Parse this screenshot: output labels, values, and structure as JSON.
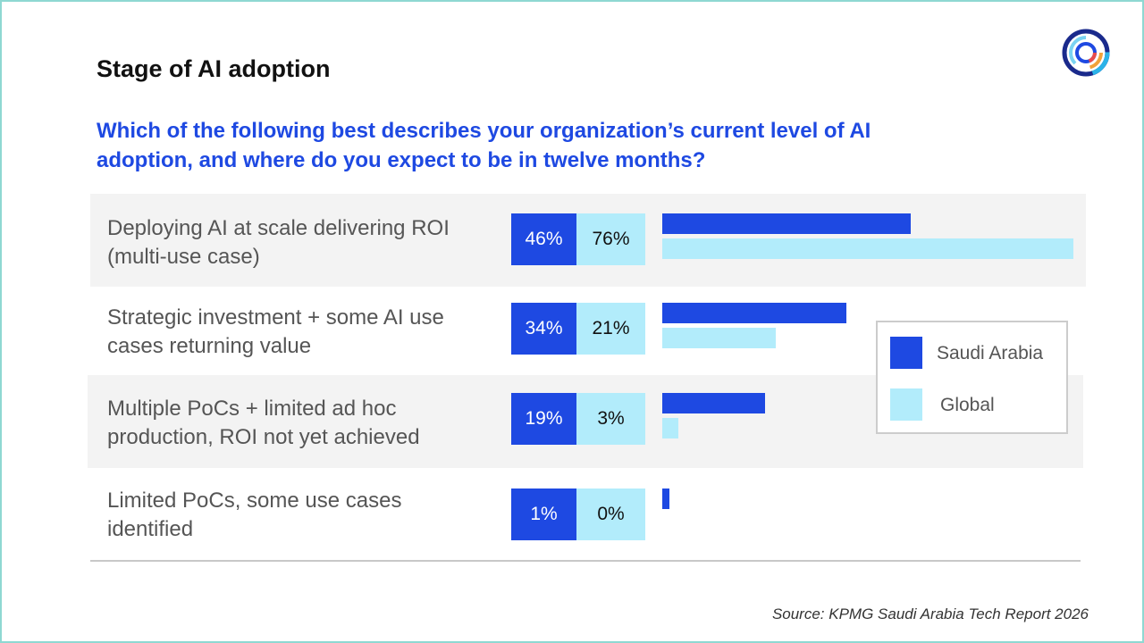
{
  "title": "Stage of AI adoption",
  "question_line1": "Which of the following best describes your organization’s current level of AI",
  "question_line2": "adoption, and where do you expect to be in twelve months?",
  "source": "Source: KPMG Saudi Arabia Tech Report 2026",
  "colors": {
    "saudi": "#1e49e2",
    "global": "#b2ecfb",
    "question": "#1e49e2",
    "frame": "#8fd8d2"
  },
  "logo": {
    "icon": "kpmg-circle-logo-icon"
  },
  "chart_data": {
    "type": "bar",
    "orientation": "horizontal",
    "categories": [
      {
        "line1": "Deploying AI at scale delivering ROI",
        "line2": "(multi-use case)"
      },
      {
        "line1": "Strategic investment + some AI use",
        "line2": "cases returning value"
      },
      {
        "line1": "Multiple PoCs + limited ad hoc",
        "line2": "production, ROI not yet achieved"
      },
      {
        "line1": "Limited PoCs, some use cases",
        "line2": "identified"
      }
    ],
    "series": [
      {
        "name": "Saudi Arabia",
        "values": [
          46,
          34,
          19,
          1
        ],
        "labels": [
          "46%",
          "34%",
          "19%",
          "1%"
        ]
      },
      {
        "name": "Global",
        "values": [
          76,
          21,
          3,
          0
        ],
        "labels": [
          "76%",
          "21%",
          "3%",
          "0%"
        ]
      }
    ],
    "xlim": [
      0,
      76
    ],
    "unit": "%",
    "legend_position": "right",
    "grid": false
  }
}
